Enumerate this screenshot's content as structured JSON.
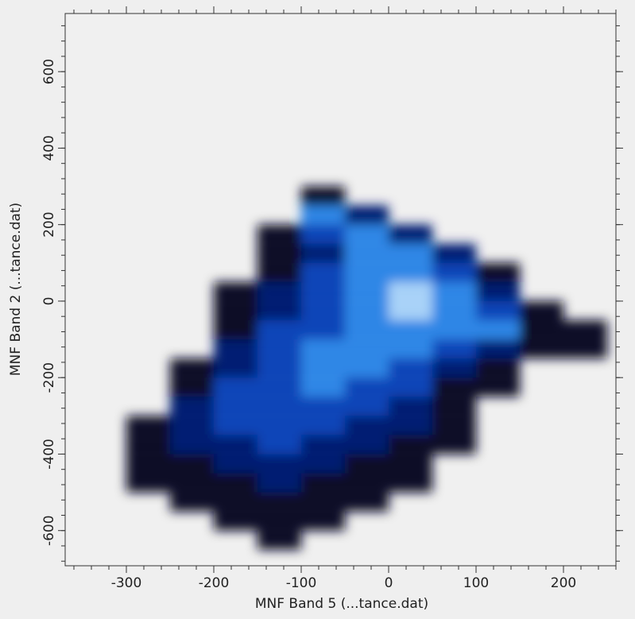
{
  "chart_data": {
    "type": "heatmap",
    "x_label": "MNF Band 5 (...tance.dat)",
    "y_label": "MNF Band 2 (...tance.dat)",
    "xlim": [
      -370,
      260
    ],
    "ylim": [
      -692,
      752
    ],
    "xticks": [
      -300,
      -200,
      -100,
      0,
      100,
      200
    ],
    "yticks": [
      -600,
      -400,
      -200,
      0,
      200,
      400,
      600
    ],
    "xminor_step": 20,
    "yminor_step": 40,
    "xbins": [
      -350,
      -300,
      -250,
      -200,
      -150,
      -100,
      -50,
      0,
      50,
      100,
      150,
      200,
      250
    ],
    "ybins": [
      300,
      250,
      200,
      150,
      100,
      50,
      0,
      -50,
      -100,
      -150,
      -200,
      -250,
      -300,
      -350,
      -400,
      -450,
      -500,
      -550,
      -600,
      -650
    ],
    "colors": [
      "none",
      "#0a0a28",
      "#001c72",
      "#0b44b8",
      "#2f86e6",
      "#a8d2f8"
    ],
    "values": [
      [
        0,
        0,
        0,
        0,
        0,
        1,
        0,
        0,
        0,
        0,
        0,
        0
      ],
      [
        0,
        0,
        0,
        0,
        0,
        4,
        2,
        0,
        0,
        0,
        0,
        0
      ],
      [
        0,
        0,
        0,
        0,
        1,
        3,
        4,
        2,
        0,
        0,
        0,
        0
      ],
      [
        0,
        0,
        0,
        0,
        1,
        2,
        4,
        4,
        2,
        0,
        0,
        0
      ],
      [
        0,
        0,
        0,
        0,
        1,
        3,
        4,
        4,
        3,
        1,
        0,
        0
      ],
      [
        0,
        0,
        0,
        1,
        2,
        3,
        4,
        5,
        4,
        2,
        0,
        0
      ],
      [
        0,
        0,
        0,
        1,
        2,
        3,
        4,
        5,
        4,
        3,
        1,
        0
      ],
      [
        0,
        0,
        0,
        1,
        3,
        3,
        4,
        4,
        4,
        4,
        1,
        1
      ],
      [
        0,
        0,
        0,
        2,
        3,
        4,
        4,
        4,
        3,
        2,
        1,
        1
      ],
      [
        0,
        0,
        1,
        2,
        3,
        4,
        4,
        3,
        2,
        1,
        0,
        0
      ],
      [
        0,
        0,
        1,
        3,
        3,
        4,
        3,
        3,
        1,
        1,
        0,
        0
      ],
      [
        0,
        0,
        2,
        3,
        3,
        3,
        3,
        2,
        1,
        0,
        0,
        0
      ],
      [
        0,
        1,
        2,
        3,
        3,
        3,
        2,
        2,
        1,
        0,
        0,
        0
      ],
      [
        0,
        1,
        2,
        2,
        3,
        2,
        2,
        1,
        1,
        0,
        0,
        0
      ],
      [
        0,
        1,
        1,
        2,
        2,
        2,
        1,
        1,
        0,
        0,
        0,
        0
      ],
      [
        0,
        1,
        1,
        1,
        2,
        1,
        1,
        1,
        0,
        0,
        0,
        0
      ],
      [
        0,
        0,
        1,
        1,
        1,
        1,
        1,
        0,
        0,
        0,
        0,
        0
      ],
      [
        0,
        0,
        0,
        1,
        1,
        1,
        0,
        0,
        0,
        0,
        0,
        0
      ],
      [
        0,
        0,
        0,
        0,
        1,
        0,
        0,
        0,
        0,
        0,
        0,
        0
      ]
    ]
  }
}
